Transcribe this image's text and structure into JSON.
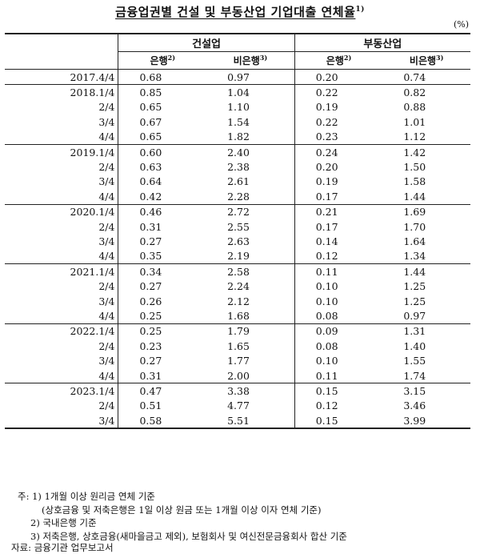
{
  "title": "금융업권별 건설 및 부동산업 기업대출 연체율",
  "title_note": "1)",
  "unit": "(%)",
  "headers": {
    "group1": "건설업",
    "group2": "부동산업",
    "bank": "은행",
    "bank_note": "2)",
    "nonbank": "비은행",
    "nonbank_note": "3)"
  },
  "rows": [
    {
      "period": "2017.4/4",
      "c_bank": "0.68",
      "c_nonbank": "0.97",
      "r_bank": "0.20",
      "r_nonbank": "0.74"
    },
    {
      "period": "2018.1/4",
      "c_bank": "0.85",
      "c_nonbank": "1.04",
      "r_bank": "0.22",
      "r_nonbank": "0.82"
    },
    {
      "period": "2/4",
      "c_bank": "0.65",
      "c_nonbank": "1.10",
      "r_bank": "0.19",
      "r_nonbank": "0.88"
    },
    {
      "period": "3/4",
      "c_bank": "0.67",
      "c_nonbank": "1.54",
      "r_bank": "0.22",
      "r_nonbank": "1.01"
    },
    {
      "period": "4/4",
      "c_bank": "0.65",
      "c_nonbank": "1.82",
      "r_bank": "0.23",
      "r_nonbank": "1.12"
    },
    {
      "period": "2019.1/4",
      "c_bank": "0.60",
      "c_nonbank": "2.40",
      "r_bank": "0.24",
      "r_nonbank": "1.42"
    },
    {
      "period": "2/4",
      "c_bank": "0.63",
      "c_nonbank": "2.38",
      "r_bank": "0.20",
      "r_nonbank": "1.50"
    },
    {
      "period": "3/4",
      "c_bank": "0.64",
      "c_nonbank": "2.61",
      "r_bank": "0.19",
      "r_nonbank": "1.58"
    },
    {
      "period": "4/4",
      "c_bank": "0.42",
      "c_nonbank": "2.28",
      "r_bank": "0.17",
      "r_nonbank": "1.44"
    },
    {
      "period": "2020.1/4",
      "c_bank": "0.46",
      "c_nonbank": "2.72",
      "r_bank": "0.21",
      "r_nonbank": "1.69"
    },
    {
      "period": "2/4",
      "c_bank": "0.31",
      "c_nonbank": "2.55",
      "r_bank": "0.17",
      "r_nonbank": "1.70"
    },
    {
      "period": "3/4",
      "c_bank": "0.27",
      "c_nonbank": "2.63",
      "r_bank": "0.14",
      "r_nonbank": "1.64"
    },
    {
      "period": "4/4",
      "c_bank": "0.35",
      "c_nonbank": "2.19",
      "r_bank": "0.12",
      "r_nonbank": "1.34"
    },
    {
      "period": "2021.1/4",
      "c_bank": "0.34",
      "c_nonbank": "2.58",
      "r_bank": "0.11",
      "r_nonbank": "1.44"
    },
    {
      "period": "2/4",
      "c_bank": "0.27",
      "c_nonbank": "2.24",
      "r_bank": "0.10",
      "r_nonbank": "1.25"
    },
    {
      "period": "3/4",
      "c_bank": "0.26",
      "c_nonbank": "2.12",
      "r_bank": "0.10",
      "r_nonbank": "1.25"
    },
    {
      "period": "4/4",
      "c_bank": "0.25",
      "c_nonbank": "1.68",
      "r_bank": "0.08",
      "r_nonbank": "0.97"
    },
    {
      "period": "2022.1/4",
      "c_bank": "0.25",
      "c_nonbank": "1.79",
      "r_bank": "0.09",
      "r_nonbank": "1.31"
    },
    {
      "period": "2/4",
      "c_bank": "0.23",
      "c_nonbank": "1.65",
      "r_bank": "0.08",
      "r_nonbank": "1.40"
    },
    {
      "period": "3/4",
      "c_bank": "0.27",
      "c_nonbank": "1.77",
      "r_bank": "0.10",
      "r_nonbank": "1.55"
    },
    {
      "period": "4/4",
      "c_bank": "0.31",
      "c_nonbank": "2.00",
      "r_bank": "0.11",
      "r_nonbank": "1.74"
    },
    {
      "period": "2023.1/4",
      "c_bank": "0.47",
      "c_nonbank": "3.38",
      "r_bank": "0.15",
      "r_nonbank": "3.15"
    },
    {
      "period": "2/4",
      "c_bank": "0.51",
      "c_nonbank": "4.77",
      "r_bank": "0.12",
      "r_nonbank": "3.46"
    },
    {
      "period": "3/4",
      "c_bank": "0.58",
      "c_nonbank": "5.51",
      "r_bank": "0.15",
      "r_nonbank": "3.99"
    }
  ],
  "group_starts": [
    0,
    1,
    5,
    9,
    13,
    17,
    21
  ],
  "notes": [
    "주: 1) 1개월 이상 원리금 연체 기준",
    "(상호금융 및 저축은행은 1일 이상 원금 또는 1개월 이상 이자 연체 기준)",
    "2) 국내은행 기준",
    "3) 저축은행, 상호금융(새마을금고 제외), 보험회사 및 여신전문금융회사 합산 기준"
  ],
  "source": "자료: 금융기관 업무보고서"
}
